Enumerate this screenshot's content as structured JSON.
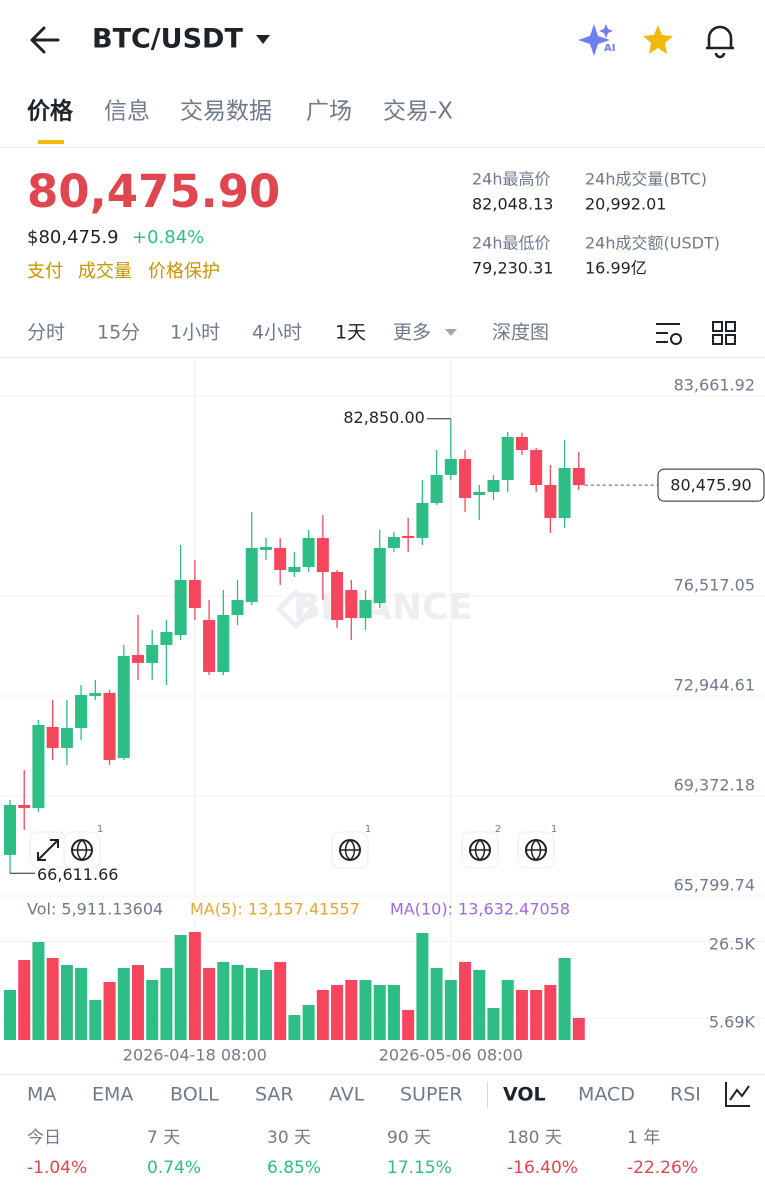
{
  "header": {
    "pair": "BTC/USDT"
  },
  "tabs": [
    "价格",
    "信息",
    "交易数据",
    "广场",
    "交易-X"
  ],
  "price": {
    "last": "80,475.90",
    "usd": "$80,475.9",
    "change": "+0.84%",
    "links": [
      "支付",
      "成交量",
      "价格保护"
    ]
  },
  "stats": [
    {
      "label": "24h最高价",
      "value": "82,048.13"
    },
    {
      "label": "24h成交量(BTC)",
      "value": "20,992.01"
    },
    {
      "label": "24h最低价",
      "value": "79,230.31"
    },
    {
      "label": "24h成交额(USDT)",
      "value": "16.99亿"
    }
  ],
  "intervals": [
    "分时",
    "15分",
    "1小时",
    "4小时",
    "1天",
    "更多",
    "深度图"
  ],
  "watermark": "BINANCE",
  "event_counts": [
    1,
    1,
    2,
    1
  ],
  "chart_data": [
    {
      "type": "candlestick",
      "open": [
        67266,
        69052,
        68945,
        71839,
        71089,
        71803,
        72946,
        73053,
        70731,
        74411,
        74125,
        74768,
        75125,
        77090,
        75661,
        73803,
        75839,
        76304,
        78161,
        78233,
        77375,
        77554,
        78590,
        77375,
        76732,
        75732,
        76268,
        78233,
        78661,
        78590,
        79840,
        80840,
        81412,
        80126,
        80233,
        80662,
        82197,
        81733,
        80483,
        79304,
        81090
      ],
      "high": [
        69231,
        70303,
        72089,
        72803,
        72803,
        73339,
        73518,
        73160,
        74768,
        75839,
        75304,
        75661,
        78340,
        77804,
        76375,
        76732,
        77090,
        79518,
        78590,
        78590,
        78090,
        78876,
        79411,
        77447,
        77090,
        76732,
        78876,
        78804,
        79304,
        80662,
        81733,
        82850,
        81733,
        80483,
        80840,
        82376,
        82340,
        81805,
        81197,
        82090,
        81662
      ],
      "low": [
        66611.66,
        68160,
        68802,
        70660,
        70481,
        71374,
        72803,
        70481,
        70660,
        73518,
        73518,
        73339,
        74946,
        75661,
        73696,
        73696,
        75482,
        76197,
        77804,
        76911,
        77197,
        77375,
        76375,
        75375,
        74946,
        75304,
        76089,
        78090,
        78090,
        78340,
        79769,
        80662,
        79518,
        79233,
        79947,
        80233,
        81555,
        80233,
        78768,
        78947,
        80304
      ],
      "close": [
        69052,
        68945,
        71910,
        71089,
        71803,
        72982,
        73053,
        70660,
        74375,
        74125,
        74768,
        75232,
        77090,
        76089,
        73803,
        75839,
        76375,
        78233,
        78268,
        77447,
        77554,
        78590,
        77375,
        75661,
        75732,
        76375,
        78233,
        78625,
        78590,
        79840,
        80840,
        81412,
        80019,
        80233,
        80662,
        82197,
        81733,
        80483,
        79304,
        81090,
        80475.9
      ],
      "up_color": "#2ebd85",
      "down_color": "#f6465d",
      "ylim": [
        65656.8,
        84947.9
      ],
      "yticks": [
        {
          "value": 83661.92,
          "label": "83,661.92"
        },
        {
          "value": 76517.05,
          "label": "76,517.05"
        },
        {
          "value": 72944.61,
          "label": "72,944.61"
        },
        {
          "value": 69372.18,
          "label": "69,372.18"
        },
        {
          "value": 65799.74,
          "label": "65,799.74"
        }
      ],
      "annotations": [
        "82,850.00",
        "66,611.66"
      ],
      "last_price_label": "80,475.90",
      "grid": true
    },
    {
      "type": "bar",
      "categories": [
        null,
        null,
        null,
        null,
        null,
        null,
        null,
        null,
        null,
        null,
        null,
        null,
        null,
        "2026-04-18 08:00",
        null,
        null,
        null,
        null,
        null,
        null,
        null,
        null,
        null,
        null,
        null,
        null,
        null,
        null,
        null,
        null,
        null,
        "2026-05-06 08:00",
        null,
        null,
        null,
        null,
        null,
        null,
        null,
        null,
        null
      ],
      "values": [
        13400,
        21430,
        26250,
        21970,
        20090,
        19290,
        10720,
        15540,
        19290,
        20090,
        16070,
        19290,
        28130,
        28930,
        19290,
        20900,
        20090,
        19290,
        18750,
        20900,
        6700,
        9380,
        13400,
        14740,
        16070,
        16070,
        14740,
        14740,
        8040,
        28670,
        19290,
        16070,
        20900,
        18750,
        8570,
        16070,
        13400,
        13400,
        14740,
        21970,
        5911.13604
      ],
      "ylim": [
        0,
        30000
      ],
      "yticks": [
        {
          "value": 26500,
          "label": "26.5K"
        },
        {
          "value": 5690,
          "label": "5.69K"
        }
      ],
      "legend": [
        {
          "text": "Vol: 5,911.13604",
          "color": "#707a8a"
        },
        {
          "text": "MA(5): 13,157.41557",
          "color": "#e3a72f"
        },
        {
          "text": "MA(10): 13,632.47058",
          "color": "#9c6ade"
        }
      ]
    }
  ],
  "indicators": [
    "MA",
    "EMA",
    "BOLL",
    "SAR",
    "AVL",
    "SUPER",
    "VOL",
    "MACD",
    "RSI"
  ],
  "performance": [
    {
      "label": "今日",
      "change": "-1.04%"
    },
    {
      "label": "7 天",
      "change": "0.74%"
    },
    {
      "label": "30 天",
      "change": "6.85%"
    },
    {
      "label": "90 天",
      "change": "17.15%"
    },
    {
      "label": "180 天",
      "change": "-16.40%"
    },
    {
      "label": "1 年",
      "change": "-22.26%"
    }
  ]
}
